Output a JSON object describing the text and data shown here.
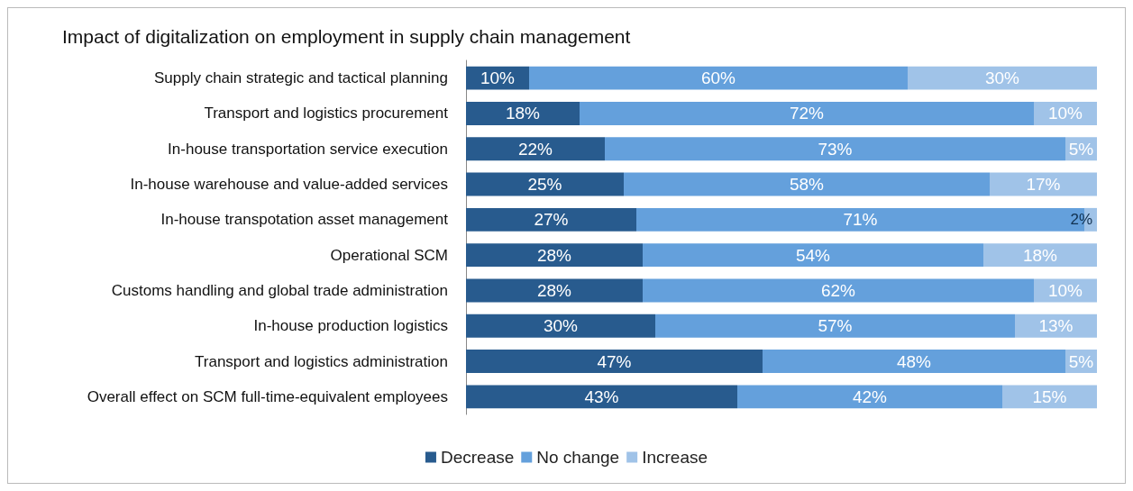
{
  "chart_data": {
    "type": "bar",
    "orientation": "horizontal",
    "stacked": true,
    "title": "Impact of digitalization on employment in supply chain management",
    "categories": [
      "Supply chain strategic and tactical planning",
      "Transport and logistics procurement",
      "In-house transportation service execution",
      "In-house warehouse and value-added services",
      "In-house transpotation asset management",
      "Operational SCM",
      "Customs handling and global trade administration",
      "In-house production logistics",
      "Transport and logistics administration",
      "Overall effect on SCM full-time-equivalent employees"
    ],
    "series": [
      {
        "name": "Decrease",
        "color": "#285b8e",
        "values": [
          10,
          18,
          22,
          25,
          27,
          28,
          28,
          30,
          47,
          43
        ],
        "value_labels": [
          "10%",
          "18%",
          "22%",
          "25%",
          "27%",
          "28%",
          "28%",
          "30%",
          "47%",
          "43%"
        ]
      },
      {
        "name": "No change",
        "color": "#64a0dc",
        "values": [
          60,
          72,
          73,
          58,
          71,
          54,
          62,
          57,
          48,
          42
        ],
        "value_labels": [
          "60%",
          "72%",
          "73%",
          "58%",
          "71%",
          "54%",
          "62%",
          "57%",
          "48%",
          "42%"
        ]
      },
      {
        "name": "Increase",
        "color": "#a0c3e8",
        "values": [
          30,
          10,
          5,
          17,
          2,
          18,
          10,
          13,
          5,
          15
        ],
        "value_labels": [
          "30%",
          "10%",
          "5%",
          "17%",
          "2%",
          "18%",
          "10%",
          "13%",
          "5%",
          "15%"
        ]
      }
    ],
    "legend": "bottom"
  }
}
